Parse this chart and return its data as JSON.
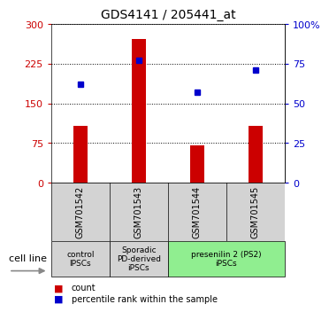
{
  "title": "GDS4141 / 205441_at",
  "categories": [
    "GSM701542",
    "GSM701543",
    "GSM701544",
    "GSM701545"
  ],
  "bar_values": [
    107,
    272,
    70,
    107
  ],
  "percentile_values": [
    62,
    77,
    57,
    71
  ],
  "left_yticks": [
    0,
    75,
    150,
    225,
    300
  ],
  "right_yticks": [
    0,
    25,
    50,
    75,
    100
  ],
  "left_ylim": [
    0,
    300
  ],
  "right_ylim": [
    0,
    100
  ],
  "bar_color": "#cc0000",
  "marker_color": "#0000cc",
  "cell_line_labels": [
    "control\nIPSCs",
    "Sporadic\nPD-derived\niPSCs",
    "presenilin 2 (PS2)\niPSCs"
  ],
  "cell_line_spans": [
    [
      0,
      1
    ],
    [
      1,
      2
    ],
    [
      2,
      4
    ]
  ],
  "cell_line_colors": [
    "#d3d3d3",
    "#d3d3d3",
    "#90ee90"
  ],
  "legend_bar_label": "count",
  "legend_marker_label": "percentile rank within the sample",
  "cell_line_text": "cell line",
  "background_color": "#ffffff",
  "plot_bg_color": "#ffffff",
  "axis_label_color_left": "#cc0000",
  "axis_label_color_right": "#0000cc",
  "gsm_box_color": "#d3d3d3"
}
